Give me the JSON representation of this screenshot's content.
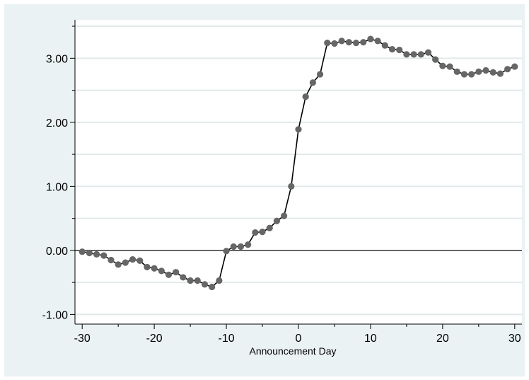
{
  "chart_data": {
    "type": "line",
    "title": "",
    "xlabel": "Announcement Day",
    "ylabel": "",
    "xlim": [
      -31,
      31
    ],
    "ylim": [
      -1.15,
      3.6
    ],
    "x_ticks": [
      -30,
      -20,
      -10,
      0,
      10,
      20,
      30
    ],
    "x_tick_labels": [
      "-30",
      "-20",
      "-10",
      "0",
      "10",
      "20",
      "30"
    ],
    "y_ticks": [
      -1,
      0,
      1,
      2,
      3
    ],
    "y_tick_labels": [
      "-1.00",
      "0.00",
      "1.00",
      "2.00",
      "3.00"
    ],
    "y_minor_ticks": [
      -0.5,
      0.5,
      1.5,
      2.5,
      3.5
    ],
    "reference_line_y": 0,
    "grid": true,
    "colors": {
      "background": "#eaf2f3",
      "plot_area": "#ffffff",
      "gridline": "#e3e9ea",
      "line": "#000000",
      "marker": "#666666",
      "reference": "#333333"
    },
    "x": [
      -30,
      -29,
      -28,
      -27,
      -26,
      -25,
      -24,
      -23,
      -22,
      -21,
      -20,
      -19,
      -18,
      -17,
      -16,
      -15,
      -14,
      -13,
      -12,
      -11,
      -10,
      -9,
      -8,
      -7,
      -6,
      -5,
      -4,
      -3,
      -2,
      -1,
      0,
      1,
      2,
      3,
      4,
      5,
      6,
      7,
      8,
      9,
      10,
      11,
      12,
      13,
      14,
      15,
      16,
      17,
      18,
      19,
      20,
      21,
      22,
      23,
      24,
      25,
      26,
      27,
      28,
      29,
      30
    ],
    "y": [
      -0.02,
      -0.04,
      -0.06,
      -0.08,
      -0.15,
      -0.22,
      -0.19,
      -0.14,
      -0.16,
      -0.26,
      -0.28,
      -0.32,
      -0.38,
      -0.34,
      -0.42,
      -0.47,
      -0.47,
      -0.53,
      -0.57,
      -0.47,
      -0.01,
      0.06,
      0.06,
      0.09,
      0.28,
      0.29,
      0.35,
      0.46,
      0.54,
      1.0,
      1.89,
      2.4,
      2.62,
      2.75,
      3.24,
      3.23,
      3.27,
      3.25,
      3.24,
      3.25,
      3.3,
      3.27,
      3.2,
      3.14,
      3.13,
      3.06,
      3.06,
      3.06,
      3.09,
      2.98,
      2.88,
      2.87,
      2.79,
      2.75,
      2.75,
      2.79,
      2.81,
      2.78,
      2.76,
      2.83,
      2.87
    ]
  }
}
